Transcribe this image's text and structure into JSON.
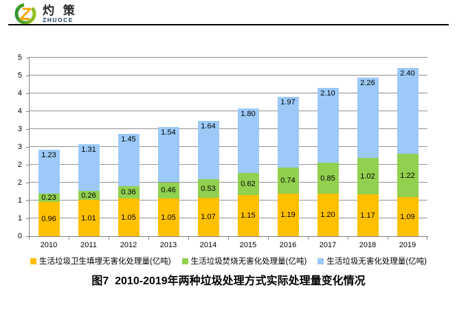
{
  "header": {
    "brand_cn": "灼 策",
    "brand_en": "ZHUOCE"
  },
  "title": "图7  2010-2019年两种垃圾处理方式实际处理量变化情况",
  "chart_data": {
    "type": "bar",
    "stacked": true,
    "title": "图7  2010-2019年两种垃圾处理方式实际处理量变化情况",
    "categories": [
      "2010",
      "2011",
      "2012",
      "2013",
      "2014",
      "2015",
      "2016",
      "2017",
      "2018",
      "2019"
    ],
    "series": [
      {
        "name": "生活垃圾卫生填埋无害化处理量(亿吨)",
        "color": "#FFC000",
        "label_position": "center",
        "values": [
          0.96,
          1.01,
          1.05,
          1.05,
          1.07,
          1.15,
          1.19,
          1.2,
          1.17,
          1.09
        ]
      },
      {
        "name": "生活垃圾焚烧无害化处理量(亿吨)",
        "color": "#92D050",
        "label_position": "center",
        "values": [
          0.23,
          0.26,
          0.36,
          0.46,
          0.53,
          0.62,
          0.74,
          0.85,
          1.02,
          1.22
        ]
      },
      {
        "name": "生活垃圾无害化处理量(亿吨)",
        "color": "#9CC9F7",
        "label_position": "inside_end",
        "values": [
          1.23,
          1.31,
          1.45,
          1.54,
          1.64,
          1.8,
          1.97,
          2.1,
          2.26,
          2.4
        ]
      }
    ],
    "ylim": [
      0,
      5
    ],
    "ytick_step": 0.5,
    "ytick_labels": [
      "0",
      "1",
      "1",
      "2",
      "2",
      "3",
      "3",
      "4",
      "4",
      "5",
      "5"
    ],
    "value_format": "0.00",
    "grid": true,
    "legend_position": "bottom"
  }
}
